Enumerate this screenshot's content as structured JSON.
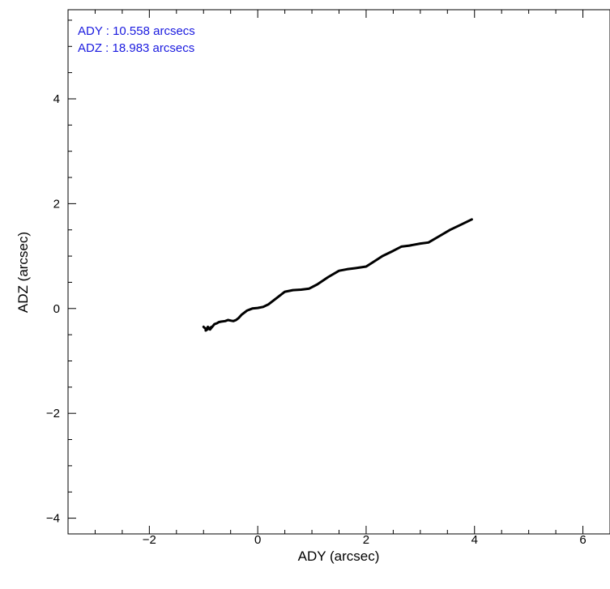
{
  "chart_data": {
    "type": "line",
    "title": "",
    "xlabel": "ADY (arcsec)",
    "ylabel": "ADZ (arcsec)",
    "xlim": [
      -3.5,
      6.5
    ],
    "ylim": [
      -4.3,
      5.7
    ],
    "x_ticks": [
      -2,
      0,
      2,
      4,
      6
    ],
    "y_ticks": [
      -4,
      -2,
      0,
      2,
      4
    ],
    "x_tick_labels": [
      "−2",
      "0",
      "2",
      "4",
      "6"
    ],
    "y_tick_labels": [
      "−4",
      "−2",
      "0",
      "2",
      "4"
    ],
    "grid": false,
    "annotations": [
      "ADY : 10.558 arcsecs",
      "ADZ : 18.983 arcsecs"
    ],
    "annotation_color": "#1a1adf",
    "line_color": "#000000",
    "series": [
      {
        "x": [
          -1.0,
          -0.95,
          -0.92,
          -0.96,
          -0.9,
          -0.85,
          -0.88,
          -0.8,
          -0.75,
          -0.72,
          -0.68,
          -0.6,
          -0.55,
          -0.5,
          -0.45,
          -0.4,
          -0.35,
          -0.3,
          -0.2,
          -0.1,
          0.0,
          0.1,
          0.2,
          0.35,
          0.5,
          0.65,
          0.8,
          0.95,
          1.1,
          1.3,
          1.5,
          1.65,
          1.8,
          2.0,
          2.15,
          2.3,
          2.5,
          2.65,
          2.8,
          3.0,
          3.15,
          3.35,
          3.55,
          3.75,
          3.95
        ],
        "y": [
          -0.35,
          -0.4,
          -0.35,
          -0.42,
          -0.38,
          -0.35,
          -0.4,
          -0.3,
          -0.28,
          -0.26,
          -0.25,
          -0.24,
          -0.22,
          -0.23,
          -0.24,
          -0.22,
          -0.18,
          -0.12,
          -0.04,
          0.0,
          0.01,
          0.03,
          0.08,
          0.2,
          0.32,
          0.35,
          0.36,
          0.38,
          0.46,
          0.6,
          0.72,
          0.75,
          0.77,
          0.8,
          0.9,
          1.0,
          1.1,
          1.18,
          1.2,
          1.24,
          1.26,
          1.38,
          1.5,
          1.6,
          1.7
        ]
      }
    ]
  }
}
